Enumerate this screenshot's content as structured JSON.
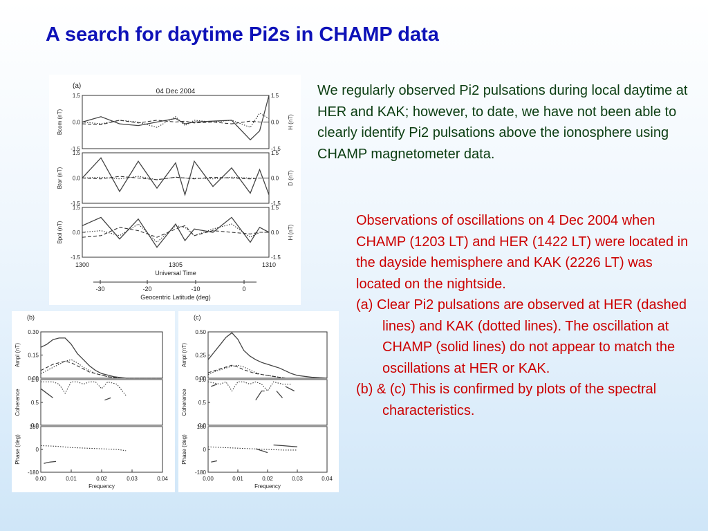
{
  "slide": {
    "title": "A search for daytime Pi2s in CHAMP data",
    "intro": "We regularly observed Pi2 pulsations during local daytime at HER and KAK; however, to date, we have not been able to clearly identify Pi2 pulsations above the ionosphere using CHAMP magnetometer data.",
    "observations": "Observations of oscillations on 4 Dec 2004 when CHAMP (1203 LT) and HER (1422 LT) were located in the dayside hemisphere and KAK (2226 LT) was located on the nightside.",
    "item_a": "(a) Clear Pi2 pulsations are observed at HER (dashed lines) and KAK (dotted lines).  The oscillation at CHAMP (solid lines) do not appear to match the oscillations at HER or KAK.",
    "item_b": "(b) & (c) This is confirmed by plots of the spectral characteristics."
  },
  "chart_data": [
    {
      "id": "a",
      "type": "line",
      "panel_label": "(a)",
      "title": "04 Dec 2004",
      "xlabel": "Universal Time",
      "x_ticks": [
        "1300",
        "1305",
        "1310"
      ],
      "xlim": [
        1300,
        1310
      ],
      "secondary_xlabel": "Geocentric Latitude (deg)",
      "secondary_x_ticks": [
        "-30",
        "-20",
        "-10",
        "0"
      ],
      "subplots": [
        {
          "ylabel_left": "Bcom (nT)",
          "ylabel_right": "H (nT)",
          "ylim": [
            -1.5,
            1.5
          ],
          "y_ticks": [
            "1.5",
            "0.0",
            "-1.5"
          ]
        },
        {
          "ylabel_left": "Btor (nT)",
          "ylabel_right": "D (nT)",
          "ylim": [
            -1.5,
            1.5
          ],
          "y_ticks": [
            "1.5",
            "0.0",
            "-1.5"
          ]
        },
        {
          "ylabel_left": "Bpol (nT)",
          "ylabel_right": "H (nT)",
          "ylim": [
            -1.5,
            1.5
          ],
          "y_ticks": [
            "1.5",
            "0.0",
            "-1.5"
          ]
        }
      ],
      "series": [
        {
          "style": "solid",
          "x": [
            1300,
            1301,
            1302,
            1303,
            1304,
            1305,
            1305.5,
            1306,
            1307,
            1308,
            1309,
            1309.5,
            1310
          ],
          "rows": [
            [
              0.0,
              0.3,
              -0.1,
              -0.2,
              0.0,
              0.2,
              -0.1,
              0.0,
              0.05,
              0.1,
              -1.0,
              -0.5,
              1.5
            ],
            [
              0.0,
              1.2,
              -0.8,
              1.0,
              -0.6,
              0.9,
              -1.0,
              1.0,
              -0.5,
              0.6,
              -0.9,
              0.5,
              -1.0
            ],
            [
              0.4,
              0.9,
              -0.4,
              0.8,
              -0.9,
              0.5,
              -0.5,
              0.2,
              0.0,
              0.9,
              -0.6,
              0.3,
              0.0
            ]
          ]
        },
        {
          "style": "dashed",
          "x": [
            1300,
            1301,
            1302,
            1303,
            1304,
            1305,
            1305.5,
            1306,
            1307,
            1308,
            1309,
            1309.5,
            1310
          ],
          "rows": [
            [
              -0.1,
              -0.15,
              0.1,
              -0.05,
              0.1,
              0.0,
              0.05,
              -0.05,
              0.0,
              -0.1,
              0.05,
              0.0,
              0.0
            ],
            [
              0.0,
              -0.05,
              0.1,
              0.0,
              -0.1,
              0.05,
              0.0,
              -0.05,
              0.05,
              0.0,
              -0.05,
              0.0,
              0.0
            ],
            [
              -0.3,
              -0.2,
              0.3,
              0.1,
              -0.3,
              0.2,
              0.4,
              -0.2,
              0.1,
              0.0,
              -0.1,
              0.0,
              0.0
            ]
          ]
        },
        {
          "style": "dotted",
          "x": [
            1300,
            1301,
            1302,
            1303,
            1304,
            1305,
            1305.5,
            1306,
            1307,
            1308,
            1309,
            1309.5,
            1310
          ],
          "rows": [
            [
              0.0,
              -0.1,
              0.1,
              0.0,
              -0.3,
              0.3,
              -0.2,
              0.1,
              0.0,
              0.1,
              -0.3,
              0.5,
              0.2
            ],
            [
              0.0,
              0.05,
              -0.05,
              0.1,
              -0.1,
              0.05,
              0.0,
              0.0,
              -0.05,
              0.05,
              0.0,
              0.0,
              0.0
            ],
            [
              0.0,
              0.1,
              -0.2,
              0.5,
              -0.6,
              0.4,
              0.3,
              -0.2,
              0.2,
              0.5,
              -0.3,
              0.0,
              0.0
            ]
          ]
        }
      ]
    },
    {
      "id": "b",
      "type": "line",
      "panel_label": "(b)",
      "xlabel": "Frequency",
      "x_ticks": [
        "0.00",
        "0.01",
        "0.02",
        "0.03",
        "0.04"
      ],
      "xlim": [
        0,
        0.04
      ],
      "subplots": [
        {
          "ylabel": "Ampl (nT)",
          "ylim": [
            0,
            0.3
          ],
          "y_ticks": [
            "0.30",
            "0.15",
            "0.00"
          ]
        },
        {
          "ylabel": "Coherence",
          "ylim": [
            0,
            1
          ],
          "y_ticks": [
            "1.0",
            "0.5",
            "0.0"
          ]
        },
        {
          "ylabel": "Phase (deg)",
          "ylim": [
            -180,
            180
          ],
          "y_ticks": [
            "180",
            "0",
            "-180"
          ]
        }
      ],
      "ampl": {
        "x": [
          0,
          0.002,
          0.004,
          0.006,
          0.008,
          0.01,
          0.012,
          0.014,
          0.016,
          0.018,
          0.02,
          0.022,
          0.024,
          0.026,
          0.028,
          0.03,
          0.035,
          0.04
        ],
        "series": [
          {
            "style": "solid",
            "values": [
              0.2,
              0.22,
              0.25,
              0.26,
              0.26,
              0.22,
              0.16,
              0.12,
              0.08,
              0.05,
              0.03,
              0.02,
              0.01,
              0.005,
              0,
              0,
              0,
              0
            ]
          },
          {
            "style": "dashed",
            "values": [
              0.05,
              0.07,
              0.09,
              0.1,
              0.11,
              0.1,
              0.08,
              0.06,
              0.04,
              0.03,
              0.02,
              0.01,
              0.005,
              0,
              0,
              0,
              0,
              0
            ]
          },
          {
            "style": "dotted",
            "values": [
              0.03,
              0.05,
              0.07,
              0.09,
              0.11,
              0.12,
              0.1,
              0.07,
              0.05,
              0.03,
              0.02,
              0.01,
              0.005,
              0,
              0,
              0,
              0,
              0
            ]
          }
        ]
      },
      "coherence": {
        "series": [
          {
            "style": "dotted",
            "x": [
              0,
              0.004,
              0.006,
              0.008,
              0.01,
              0.012,
              0.014,
              0.016,
              0.018,
              0.02,
              0.022,
              0.025,
              0.028
            ],
            "values": [
              0.95,
              0.95,
              0.9,
              0.7,
              0.95,
              0.95,
              0.9,
              0.95,
              0.95,
              0.8,
              0.95,
              0.9,
              0.65
            ]
          },
          {
            "style": "solid",
            "x": [
              0,
              0.002,
              0.004
            ],
            "values": [
              0.8,
              0.7,
              0.6
            ]
          },
          {
            "style": "solid",
            "x": [
              0.021,
              0.023
            ],
            "values": [
              0.55,
              0.6
            ]
          }
        ]
      },
      "phase": {
        "series": [
          {
            "style": "dotted",
            "x": [
              0,
              0.005,
              0.01,
              0.015,
              0.02,
              0.025,
              0.028
            ],
            "values": [
              30,
              25,
              15,
              10,
              5,
              0,
              -10
            ]
          },
          {
            "style": "solid",
            "x": [
              0.001,
              0.003,
              0.005
            ],
            "values": [
              -110,
              -100,
              -95
            ]
          }
        ]
      }
    },
    {
      "id": "c",
      "type": "line",
      "panel_label": "(c)",
      "xlabel": "Frequency",
      "x_ticks": [
        "0.00",
        "0.01",
        "0.02",
        "0.03",
        "0.04"
      ],
      "xlim": [
        0,
        0.04
      ],
      "subplots": [
        {
          "ylabel": "Ampl (nT)",
          "ylim": [
            0,
            0.5
          ],
          "y_ticks": [
            "0.50",
            "0.25",
            "0.00"
          ]
        },
        {
          "ylabel": "Coherence",
          "ylim": [
            0,
            1
          ],
          "y_ticks": [
            "1.0",
            "0.5",
            "0.0"
          ]
        },
        {
          "ylabel": "Phase (deg)",
          "ylim": [
            -180,
            180
          ],
          "y_ticks": [
            "180",
            "0",
            "-180"
          ]
        }
      ],
      "ampl": {
        "x": [
          0,
          0.002,
          0.004,
          0.006,
          0.008,
          0.01,
          0.012,
          0.014,
          0.016,
          0.018,
          0.02,
          0.022,
          0.024,
          0.026,
          0.028,
          0.03,
          0.035,
          0.04
        ],
        "series": [
          {
            "style": "solid",
            "values": [
              0.2,
              0.28,
              0.36,
              0.44,
              0.49,
              0.42,
              0.3,
              0.24,
              0.2,
              0.17,
              0.15,
              0.13,
              0.11,
              0.08,
              0.05,
              0.03,
              0.01,
              0
            ]
          },
          {
            "style": "dashed",
            "values": [
              0.06,
              0.08,
              0.1,
              0.12,
              0.14,
              0.12,
              0.09,
              0.07,
              0.05,
              0.04,
              0.03,
              0.02,
              0.01,
              0,
              0,
              0,
              0,
              0
            ]
          },
          {
            "style": "dotted",
            "values": [
              0.04,
              0.07,
              0.09,
              0.11,
              0.13,
              0.14,
              0.12,
              0.09,
              0.06,
              0.04,
              0.03,
              0.02,
              0.01,
              0,
              0,
              0,
              0,
              0
            ]
          }
        ]
      },
      "coherence": {
        "series": [
          {
            "style": "dotted",
            "x": [
              0,
              0.004,
              0.006,
              0.008,
              0.01,
              0.012,
              0.014,
              0.016,
              0.018,
              0.02,
              0.022,
              0.025,
              0.028
            ],
            "values": [
              0.95,
              0.9,
              0.95,
              0.75,
              0.95,
              0.95,
              0.9,
              0.95,
              0.9,
              0.75,
              0.95,
              0.9,
              0.9
            ]
          },
          {
            "style": "solid",
            "x": [
              0.001,
              0.003
            ],
            "values": [
              0.85,
              0.9
            ]
          },
          {
            "style": "solid",
            "x": [
              0.016,
              0.018,
              0.019
            ],
            "values": [
              0.55,
              0.75,
              0.75
            ]
          },
          {
            "style": "solid",
            "x": [
              0.023,
              0.025
            ],
            "values": [
              0.75,
              0.6
            ]
          },
          {
            "style": "solid",
            "x": [
              0.026,
              0.029
            ],
            "values": [
              0.85,
              0.75
            ]
          }
        ]
      },
      "phase": {
        "series": [
          {
            "style": "dotted",
            "x": [
              0,
              0.005,
              0.01,
              0.015,
              0.02,
              0.025,
              0.03
            ],
            "values": [
              20,
              15,
              10,
              5,
              0,
              -5,
              -5
            ]
          },
          {
            "style": "solid",
            "x": [
              0.001,
              0.003
            ],
            "values": [
              -100,
              -90
            ]
          },
          {
            "style": "solid",
            "x": [
              0.016,
              0.018,
              0.02
            ],
            "values": [
              5,
              -10,
              -25
            ]
          },
          {
            "style": "solid",
            "x": [
              0.022,
              0.025,
              0.03
            ],
            "values": [
              35,
              30,
              20
            ]
          }
        ]
      }
    }
  ]
}
